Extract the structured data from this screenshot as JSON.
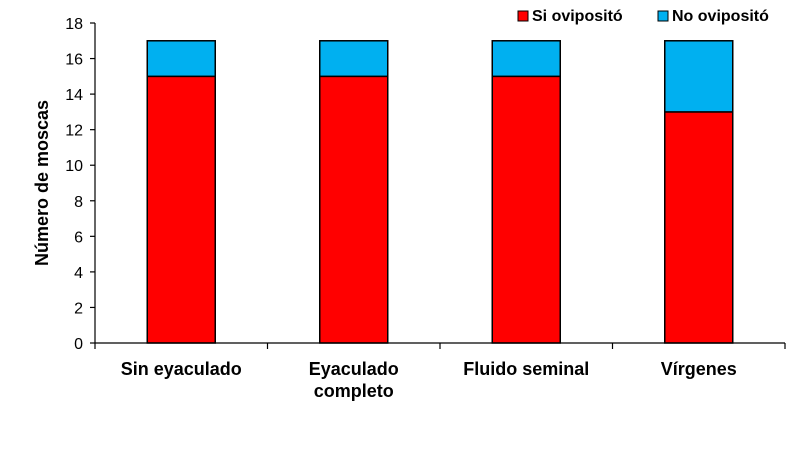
{
  "chart_data": {
    "type": "bar",
    "stacked": true,
    "categories": [
      "Sin eyaculado",
      "Eyaculado completo",
      "Fluido seminal",
      "Vírgenes"
    ],
    "category_lines": [
      [
        "Sin eyaculado"
      ],
      [
        "Eyaculado",
        "completo"
      ],
      [
        "Fluido seminal"
      ],
      [
        "Vírgenes"
      ]
    ],
    "series": [
      {
        "name": "Si ovipositó",
        "color": "#ff0000",
        "values": [
          15,
          15,
          15,
          13
        ]
      },
      {
        "name": "No ovipositó",
        "color": "#00b0f0",
        "values": [
          2,
          2,
          2,
          4
        ]
      }
    ],
    "xlabel": "",
    "ylabel": "Número de moscas",
    "ylim": [
      0,
      18
    ],
    "yticks": [
      0,
      2,
      4,
      6,
      8,
      10,
      12,
      14,
      16,
      18
    ],
    "grid": false,
    "legend_position": "top-right"
  }
}
